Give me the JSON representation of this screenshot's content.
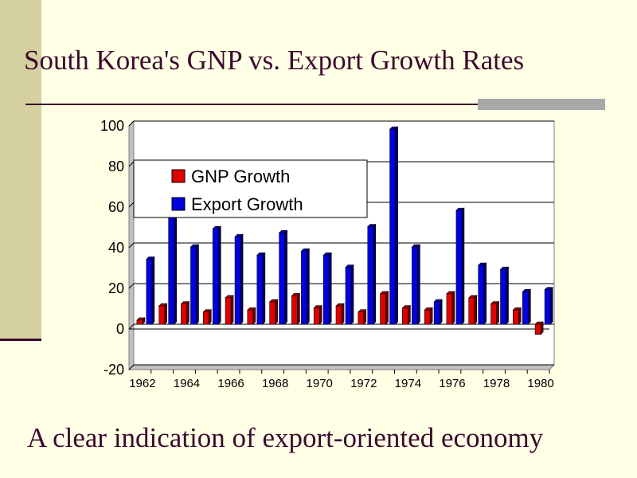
{
  "slide": {
    "title": "South Korea's GNP vs. Export Growth Rates",
    "subtitle": "A clear indication of export-oriented economy"
  },
  "colors": {
    "background": "#FFFFE5",
    "text": "#3C0A2E",
    "gnp": "#E00000",
    "export": "#0000E0"
  },
  "chart_data": {
    "type": "bar",
    "categories": [
      "1962",
      "1963",
      "1964",
      "1965",
      "1966",
      "1967",
      "1968",
      "1969",
      "1970",
      "1971",
      "1972",
      "1973",
      "1974",
      "1975",
      "1976",
      "1977",
      "1978",
      "1979",
      "1980"
    ],
    "x_tick_labels": [
      "1962",
      "1964",
      "1966",
      "1968",
      "1970",
      "1972",
      "1974",
      "1976",
      "1978",
      "1980"
    ],
    "series": [
      {
        "name": "GNP Growth",
        "color": "#E00000",
        "values": [
          2,
          9,
          10,
          6,
          13,
          7,
          11,
          14,
          8,
          9,
          6,
          15,
          8,
          7,
          15,
          13,
          10,
          7,
          -5
        ]
      },
      {
        "name": "Export Growth",
        "color": "#0000E0",
        "values": [
          32,
          57,
          38,
          47,
          43,
          34,
          45,
          36,
          34,
          28,
          48,
          96,
          38,
          11,
          56,
          29,
          27,
          16,
          17
        ]
      }
    ],
    "ylim": [
      -20,
      100
    ],
    "y_ticks": [
      -20,
      0,
      20,
      40,
      60,
      80,
      100
    ],
    "grid": true,
    "legend": "top-left",
    "title": "",
    "xlabel": "",
    "ylabel": ""
  }
}
